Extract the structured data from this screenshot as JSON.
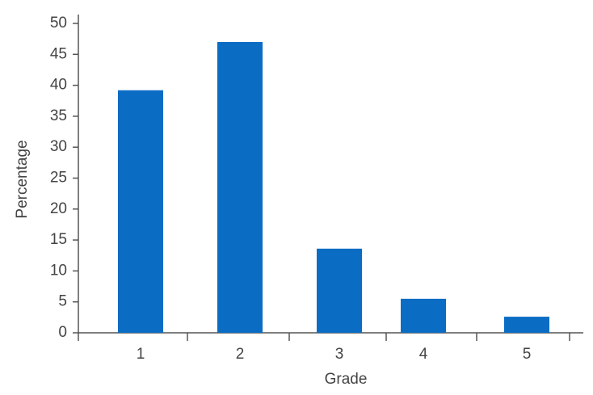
{
  "chart_data": {
    "type": "bar",
    "x_label": "Grade",
    "y_label": "Percentage",
    "categories": [
      "1",
      "2",
      "3",
      "4",
      "5"
    ],
    "values": [
      39.2,
      47,
      13.6,
      5.5,
      2.6
    ],
    "color": "#0b6cc4",
    "ylim": [
      0,
      50
    ],
    "yticks": [
      0,
      5,
      10,
      15,
      20,
      25,
      30,
      35,
      40,
      45,
      50
    ]
  }
}
